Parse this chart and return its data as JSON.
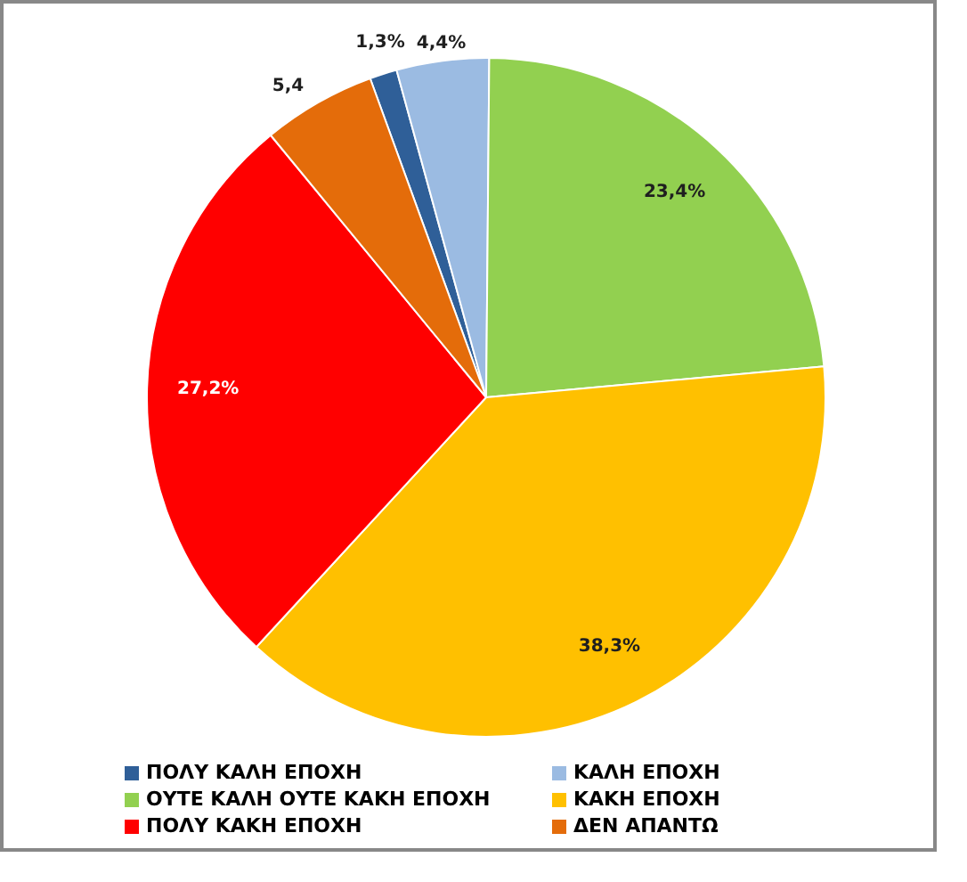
{
  "chart_data": {
    "type": "pie",
    "categories": [
      "ΠΟΛΥ ΚΑΛΗ ΕΠΟΧΗ",
      "ΚΑΛΗ ΕΠΟΧΗ",
      "ΟΥΤΕ ΚΑΛΗ ΟΥΤΕ ΚΑΚΗ ΕΠΟΧΗ",
      "ΚΑΚΗ ΕΠΟΧΗ",
      "ΠΟΛΥ ΚΑΚΗ ΕΠΟΧΗ",
      "ΔΕΝ ΑΠΑΝΤΩ"
    ],
    "values": [
      1.3,
      4.4,
      23.4,
      38.3,
      27.2,
      5.4
    ],
    "colors": [
      "#2f5f98",
      "#9bbbe2",
      "#92d050",
      "#ffc000",
      "#ff0000",
      "#e46c0a"
    ],
    "value_labels": [
      "1,3%",
      "4,4%",
      "23,4%",
      "38,3%",
      "27,2%",
      "5,4"
    ],
    "legend": "bottom"
  }
}
